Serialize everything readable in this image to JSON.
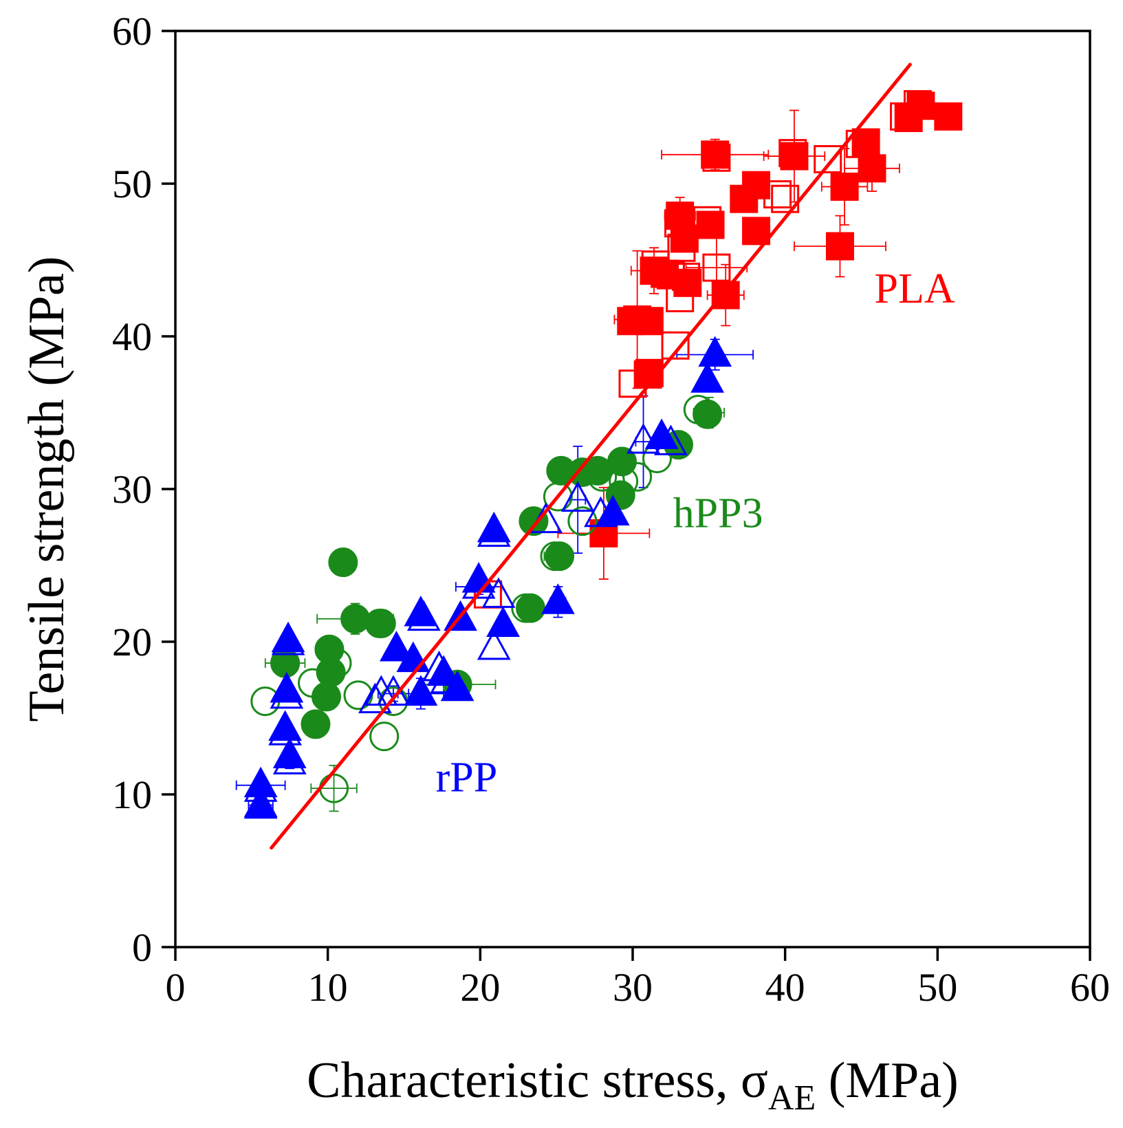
{
  "chart_data": {
    "type": "scatter",
    "title": "",
    "xlabel": "Characteristic stress, σ",
    "xlabel_sub": "AE",
    "xlabel_unit": " (MPa)",
    "ylabel": "Tensile strength (MPa)",
    "xlim": [
      0,
      60
    ],
    "ylim": [
      0,
      60
    ],
    "xticks": [
      "0",
      "10",
      "20",
      "30",
      "40",
      "50",
      "60"
    ],
    "yticks": [
      "0",
      "10",
      "20",
      "30",
      "40",
      "50",
      "60"
    ],
    "colors": {
      "PLA": "#ff0000",
      "hPP3": "#1a8a1a",
      "rPP": "#0000ff",
      "fit": "#ff0000"
    },
    "annotations": [
      {
        "series": "PLA",
        "text": "PLA",
        "x": 48.5,
        "y": 42.2
      },
      {
        "series": "hPP3",
        "text": "hPP3",
        "x": 35.6,
        "y": 27.5
      },
      {
        "series": "rPP",
        "text": "rPP",
        "x": 19.1,
        "y": 10.2
      }
    ],
    "fit_line": {
      "x": [
        6.3,
        48.2
      ],
      "y": [
        6.5,
        57.8
      ]
    },
    "series": [
      {
        "name": "PLA",
        "marker": "square",
        "color": "#ff0000",
        "filled": [
          [
            35.4,
            51.9
          ],
          [
            40.6,
            51.8
          ],
          [
            38.1,
            49.9
          ],
          [
            37.3,
            49.0
          ],
          [
            45.3,
            52.7
          ],
          [
            45.7,
            51.0
          ],
          [
            48.1,
            54.3
          ],
          [
            48.9,
            55.1
          ],
          [
            50.7,
            54.4
          ],
          [
            33.1,
            47.9
          ],
          [
            35.1,
            47.3
          ],
          [
            33.4,
            46.4
          ],
          [
            38.1,
            46.9
          ],
          [
            43.9,
            49.8
          ],
          [
            43.6,
            45.9
          ],
          [
            32.1,
            44.1
          ],
          [
            31.4,
            44.3
          ],
          [
            33.6,
            43.5
          ],
          [
            36.1,
            42.7
          ],
          [
            29.9,
            41.0
          ],
          [
            31.1,
            41.0
          ],
          [
            31.1,
            37.6
          ],
          [
            28.1,
            27.1
          ]
        ],
        "open": [
          [
            35.5,
            51.7
          ],
          [
            40.5,
            52.0
          ],
          [
            42.8,
            51.6
          ],
          [
            44.9,
            52.6
          ],
          [
            47.8,
            54.4
          ],
          [
            48.7,
            55.2
          ],
          [
            39.5,
            49.3
          ],
          [
            40.0,
            49.0
          ],
          [
            33.0,
            47.4
          ],
          [
            34.9,
            47.6
          ],
          [
            33.2,
            45.8
          ],
          [
            35.5,
            44.5
          ],
          [
            31.5,
            44.7
          ],
          [
            32.5,
            44.0
          ],
          [
            33.5,
            43.9
          ],
          [
            33.1,
            42.5
          ],
          [
            30.3,
            41.1
          ],
          [
            32.8,
            39.4
          ],
          [
            30.0,
            36.9
          ],
          [
            31.0,
            37.5
          ],
          [
            20.5,
            23.1
          ]
        ],
        "errors": [
          [
            35.4,
            51.9,
            3.5,
            1.0
          ],
          [
            40.6,
            51.8,
            2.0,
            3.0
          ],
          [
            43.6,
            45.9,
            3.0,
            2.0
          ],
          [
            43.9,
            49.8,
            1.5,
            2.5
          ],
          [
            45.7,
            51.0,
            1.8,
            1.5
          ],
          [
            31.4,
            44.3,
            1.5,
            1.5
          ],
          [
            33.1,
            47.9,
            1.0,
            1.2
          ],
          [
            30.3,
            41.1,
            1.5,
            4.5
          ],
          [
            35.5,
            44.5,
            2.0,
            2.0
          ],
          [
            28.1,
            27.1,
            3.0,
            3.0
          ],
          [
            36.1,
            42.7,
            1.2,
            2.0
          ]
        ]
      },
      {
        "name": "hPP3",
        "marker": "circle",
        "color": "#1a8a1a",
        "filled": [
          [
            11.0,
            25.2
          ],
          [
            11.8,
            21.5
          ],
          [
            10.1,
            19.5
          ],
          [
            10.2,
            18.0
          ],
          [
            9.9,
            16.4
          ],
          [
            9.2,
            14.6
          ],
          [
            7.2,
            18.6
          ],
          [
            13.5,
            21.2
          ],
          [
            23.3,
            22.2
          ],
          [
            25.2,
            25.6
          ],
          [
            25.3,
            31.2
          ],
          [
            26.7,
            31.1
          ],
          [
            27.7,
            31.2
          ],
          [
            29.3,
            31.8
          ],
          [
            29.2,
            29.6
          ],
          [
            23.5,
            27.9
          ],
          [
            33.0,
            32.9
          ],
          [
            34.9,
            34.9
          ],
          [
            18.5,
            17.2
          ]
        ],
        "open": [
          [
            5.9,
            16.1
          ],
          [
            7.2,
            18.6
          ],
          [
            9.0,
            17.3
          ],
          [
            10.6,
            18.6
          ],
          [
            12.0,
            16.5
          ],
          [
            13.7,
            13.8
          ],
          [
            14.3,
            16.1
          ],
          [
            13.4,
            21.2
          ],
          [
            10.4,
            10.4
          ],
          [
            23.0,
            22.2
          ],
          [
            24.9,
            25.6
          ],
          [
            25.1,
            29.5
          ],
          [
            26.7,
            27.9
          ],
          [
            28.0,
            30.8
          ],
          [
            29.4,
            30.5
          ],
          [
            30.3,
            30.8
          ],
          [
            31.6,
            32.0
          ],
          [
            34.3,
            35.2
          ]
        ],
        "errors": [
          [
            11.8,
            21.5,
            2.5,
            1.0
          ],
          [
            10.4,
            10.4,
            1.5,
            1.5
          ],
          [
            7.2,
            18.6,
            1.3,
            0.9
          ],
          [
            18.5,
            17.2,
            2.5,
            0.5
          ],
          [
            35.0,
            35.0,
            1.0,
            1.0
          ],
          [
            25.0,
            25.6,
            0.8,
            0.8
          ]
        ]
      },
      {
        "name": "rPP",
        "marker": "triangle",
        "color": "#0000ff",
        "filled": [
          [
            5.6,
            10.6
          ],
          [
            5.6,
            9.3
          ],
          [
            7.4,
            20.1
          ],
          [
            7.3,
            16.8
          ],
          [
            7.2,
            14.3
          ],
          [
            7.5,
            12.5
          ],
          [
            14.5,
            19.5
          ],
          [
            15.6,
            18.8
          ],
          [
            16.1,
            21.8
          ],
          [
            17.6,
            17.9
          ],
          [
            18.5,
            16.9
          ],
          [
            18.7,
            21.5
          ],
          [
            19.9,
            24.0
          ],
          [
            20.9,
            27.3
          ],
          [
            21.5,
            21.1
          ],
          [
            25.1,
            22.6
          ],
          [
            28.7,
            28.4
          ],
          [
            31.9,
            33.4
          ],
          [
            35.4,
            38.8
          ],
          [
            34.9,
            37.1
          ],
          [
            16.1,
            16.6
          ]
        ],
        "open": [
          [
            5.6,
            9.2
          ],
          [
            5.6,
            10.3
          ],
          [
            7.4,
            19.9
          ],
          [
            7.3,
            16.4
          ],
          [
            7.2,
            14.0
          ],
          [
            7.5,
            12.1
          ],
          [
            13.1,
            16.1
          ],
          [
            13.5,
            16.6
          ],
          [
            14.3,
            16.6
          ],
          [
            16.3,
            21.5
          ],
          [
            17.3,
            18.2
          ],
          [
            17.8,
            17.4
          ],
          [
            20.9,
            19.6
          ],
          [
            21.2,
            23.0
          ],
          [
            20.9,
            27.0
          ],
          [
            24.3,
            27.9
          ],
          [
            26.4,
            29.3
          ],
          [
            27.9,
            28.3
          ],
          [
            30.7,
            33.1
          ],
          [
            32.5,
            33.0
          ],
          [
            19.9,
            23.6
          ]
        ],
        "errors": [
          [
            5.6,
            10.6,
            1.6,
            0.5
          ],
          [
            5.6,
            9.3,
            0.8,
            0.5
          ],
          [
            35.4,
            38.8,
            2.5,
            1.0
          ],
          [
            30.7,
            33.1,
            0.5,
            3.0
          ],
          [
            26.4,
            29.3,
            0.5,
            3.5
          ],
          [
            25.1,
            22.6,
            0.5,
            1.0
          ],
          [
            16.1,
            16.6,
            1.5,
            1.0
          ],
          [
            14.3,
            16.6,
            1.0,
            0.5
          ],
          [
            19.9,
            23.6,
            1.5,
            0.5
          ],
          [
            7.5,
            12.1,
            0.3,
            0.4
          ]
        ]
      }
    ]
  }
}
